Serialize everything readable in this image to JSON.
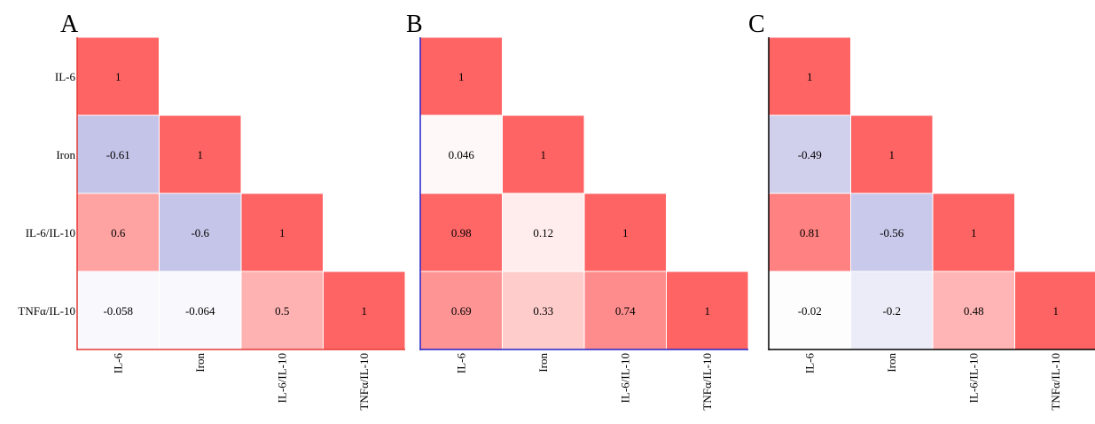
{
  "chart_data": [
    {
      "type": "heatmap",
      "panel_label": "A",
      "variables": [
        "IL-6",
        "Iron",
        "IL-6/IL-10",
        "TNFα/IL-10"
      ],
      "row_labels": [
        "IL-6",
        "Iron",
        "IL-6/IL-10",
        "TNFα/IL-10"
      ],
      "col_labels": [
        "IL-6",
        "Iron",
        "IL-6/IL-10",
        "TNFα/IL-10"
      ],
      "axis_color": "#e53935",
      "matrix_lower": [
        [
          "1"
        ],
        [
          "-0.61",
          "1"
        ],
        [
          "0.6",
          "-0.6",
          "1"
        ],
        [
          "-0.058",
          "-0.064",
          "0.5",
          "1"
        ]
      ]
    },
    {
      "type": "heatmap",
      "panel_label": "B",
      "variables": [
        "IL-6",
        "Iron",
        "IL-6/IL-10",
        "TNFα/IL-10"
      ],
      "row_labels": [],
      "col_labels": [
        "IL-6",
        "Iron",
        "IL-6/IL-10",
        "TNFα/IL-10"
      ],
      "axis_color": "#2222cc",
      "matrix_lower": [
        [
          "1"
        ],
        [
          "0.046",
          "1"
        ],
        [
          "0.98",
          "0.12",
          "1"
        ],
        [
          "0.69",
          "0.33",
          "0.74",
          "1"
        ]
      ]
    },
    {
      "type": "heatmap",
      "panel_label": "C",
      "variables": [
        "IL-6",
        "Iron",
        "IL-6/IL-10",
        "TNFα/IL-10"
      ],
      "row_labels": [],
      "col_labels": [
        "IL-6",
        "Iron",
        "IL-6/IL-10",
        "TNFα/IL-10"
      ],
      "axis_color": "#000000",
      "matrix_lower": [
        [
          "1"
        ],
        [
          "-0.49",
          "1"
        ],
        [
          "0.81",
          "-0.56",
          "1"
        ],
        [
          "-0.02",
          "-0.2",
          "0.48",
          "1"
        ]
      ]
    }
  ],
  "colors": {
    "positive": "#ff6464",
    "negative": "#9f9fdb",
    "neutral": "#ffffff"
  }
}
